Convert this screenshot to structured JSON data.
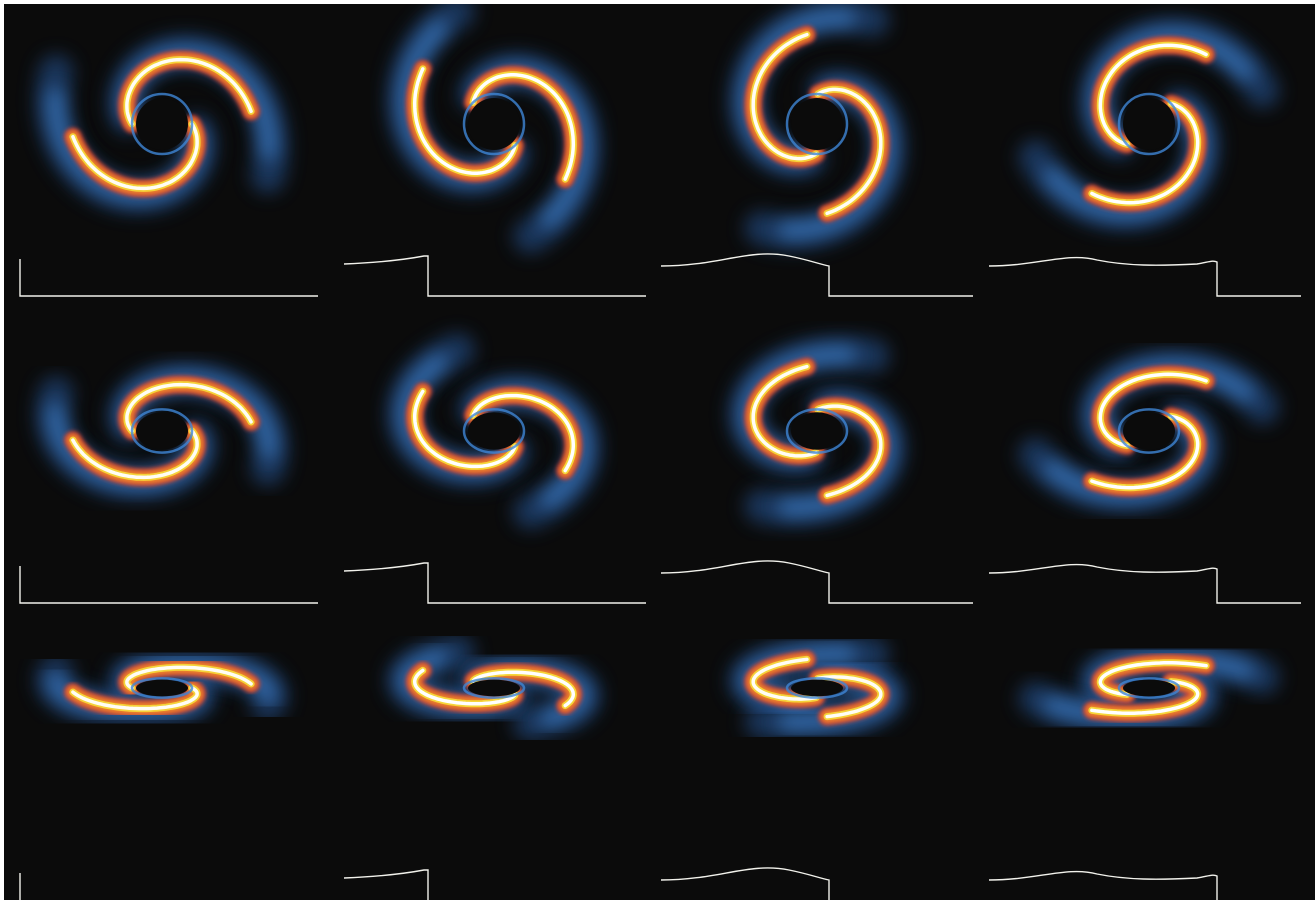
{
  "figure": {
    "colors": {
      "background": "#0b0b0b",
      "trace": "#f2f2ec",
      "colormap": [
        "#142a5a",
        "#26589c",
        "#3f86d6",
        "#8a2a6e",
        "#d8402e",
        "#f08a2a",
        "#f6d63a",
        "#fff6c8",
        "#ffffff"
      ]
    },
    "layout": {
      "rows": 3,
      "columns": 4
    },
    "panels": [
      {
        "row": 0,
        "col": 0,
        "tilt": 1.0,
        "trace_shape": "flat",
        "brightness": 0.95
      },
      {
        "row": 0,
        "col": 1,
        "tilt": 1.0,
        "trace_shape": "step",
        "brightness": 1.0
      },
      {
        "row": 0,
        "col": 2,
        "tilt": 1.0,
        "trace_shape": "bump",
        "brightness": 0.95
      },
      {
        "row": 0,
        "col": 3,
        "tilt": 1.0,
        "trace_shape": "double",
        "brightness": 1.0
      },
      {
        "row": 1,
        "col": 0,
        "tilt": 0.72,
        "trace_shape": "flat",
        "brightness": 0.95
      },
      {
        "row": 1,
        "col": 1,
        "tilt": 0.72,
        "trace_shape": "step",
        "brightness": 1.0
      },
      {
        "row": 1,
        "col": 2,
        "tilt": 0.72,
        "trace_shape": "bump",
        "brightness": 0.95
      },
      {
        "row": 1,
        "col": 3,
        "tilt": 0.72,
        "trace_shape": "double",
        "brightness": 1.0
      },
      {
        "row": 2,
        "col": 0,
        "tilt": 0.32,
        "trace_shape": "flat",
        "brightness": 0.95
      },
      {
        "row": 2,
        "col": 1,
        "tilt": 0.32,
        "trace_shape": "step",
        "brightness": 1.0
      },
      {
        "row": 2,
        "col": 2,
        "tilt": 0.32,
        "trace_shape": "bump",
        "brightness": 0.95
      },
      {
        "row": 2,
        "col": 3,
        "tilt": 0.32,
        "trace_shape": "double",
        "brightness": 1.0
      }
    ]
  }
}
